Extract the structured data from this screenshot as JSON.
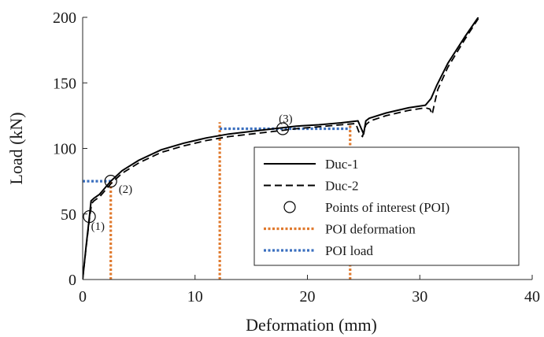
{
  "chart_data": {
    "type": "line",
    "xlabel": "Deformation (mm)",
    "ylabel": "Load (kN)",
    "xlim": [
      0,
      40
    ],
    "ylim": [
      0,
      200
    ],
    "xticks": [
      "0",
      "10",
      "20",
      "30",
      "40"
    ],
    "yticks": [
      "0",
      "50",
      "100",
      "150",
      "200"
    ],
    "grid": false,
    "legend_position": "lower-right",
    "series": [
      {
        "name": "Duc-1",
        "style": "solid",
        "color": "#000000",
        "x": [
          0,
          0.3,
          0.6,
          0.75,
          1.0,
          1.5,
          2.0,
          2.5,
          3.5,
          5,
          7,
          9,
          11,
          13,
          15,
          17,
          19,
          21,
          23,
          24.5,
          24.8,
          25.0,
          25.2,
          25.5,
          27,
          29,
          30.5,
          31.0,
          31.5,
          32.5,
          34,
          35.2
        ],
        "y": [
          0,
          25,
          48,
          60,
          62,
          65,
          70,
          75,
          83,
          91,
          99,
          104,
          108,
          111,
          113,
          115,
          117,
          118,
          119.5,
          121,
          115,
          111,
          121,
          123,
          127,
          131,
          133,
          138,
          148,
          165,
          185,
          200
        ]
      },
      {
        "name": "Duc-2",
        "style": "dashed",
        "color": "#000000",
        "x": [
          0,
          0.3,
          0.6,
          0.8,
          1.0,
          1.5,
          2.0,
          2.5,
          3.5,
          5,
          7,
          9,
          11,
          13,
          15,
          17,
          19,
          21,
          23,
          24.3,
          24.6,
          24.9,
          25.2,
          25.6,
          27,
          29,
          30.5,
          30.9,
          31.1,
          31.3,
          31.6,
          32.5,
          34,
          35.2
        ],
        "y": [
          0,
          24,
          46,
          58,
          60,
          63,
          68,
          73,
          81,
          89,
          97,
          102,
          106,
          109,
          111,
          113,
          115,
          116.5,
          118,
          119,
          112,
          109,
          118,
          121,
          125,
          129,
          131,
          130,
          126,
          134,
          145,
          162,
          183,
          199
        ]
      },
      {
        "name": "Points of interest (POI)",
        "style": "marker",
        "color": "#000000",
        "x": [
          0.6,
          2.5,
          17.8
        ],
        "y": [
          48,
          75,
          115
        ],
        "labels": [
          "(1)",
          "(2)",
          "(3)"
        ]
      },
      {
        "name": "POI deformation",
        "style": "dotted",
        "color": "#e07a2e",
        "segments": [
          {
            "x": [
              2.5,
              2.5
            ],
            "y": [
              0,
              75
            ]
          },
          {
            "x": [
              12.2,
              12.2
            ],
            "y": [
              0,
              120
            ]
          },
          {
            "x": [
              23.8,
              23.8
            ],
            "y": [
              0,
              118
            ]
          }
        ]
      },
      {
        "name": "POI load",
        "style": "dotted",
        "color": "#3a6fbf",
        "segments": [
          {
            "x": [
              0,
              2.5
            ],
            "y": [
              75,
              75
            ]
          },
          {
            "x": [
              12.2,
              23.8
            ],
            "y": [
              115,
              115
            ]
          }
        ]
      }
    ]
  }
}
